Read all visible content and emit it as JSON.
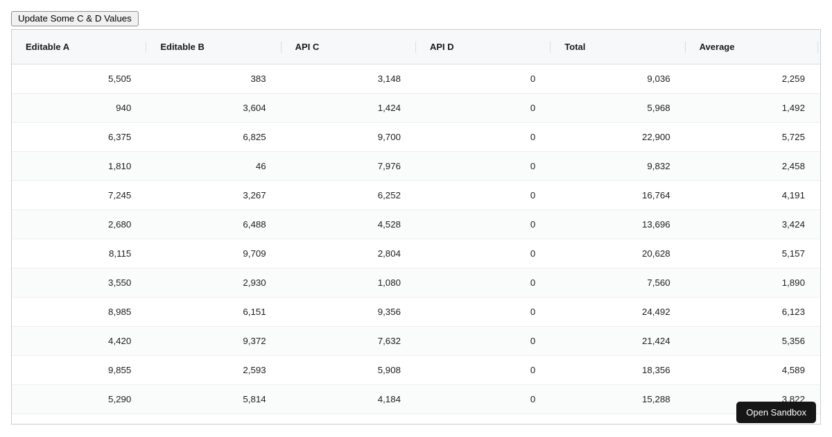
{
  "toolbar": {
    "update_button_label": "Update Some C & D Values"
  },
  "table": {
    "columns": [
      "Editable A",
      "Editable B",
      "API C",
      "API D",
      "Total",
      "Average"
    ],
    "rows": [
      {
        "cells": [
          "5,505",
          "383",
          "3,148",
          "0",
          "9,036",
          "2,259"
        ]
      },
      {
        "cells": [
          "940",
          "3,604",
          "1,424",
          "0",
          "5,968",
          "1,492"
        ]
      },
      {
        "cells": [
          "6,375",
          "6,825",
          "9,700",
          "0",
          "22,900",
          "5,725"
        ]
      },
      {
        "cells": [
          "1,810",
          "46",
          "7,976",
          "0",
          "9,832",
          "2,458"
        ]
      },
      {
        "cells": [
          "7,245",
          "3,267",
          "6,252",
          "0",
          "16,764",
          "4,191"
        ]
      },
      {
        "cells": [
          "2,680",
          "6,488",
          "4,528",
          "0",
          "13,696",
          "3,424"
        ]
      },
      {
        "cells": [
          "8,115",
          "9,709",
          "2,804",
          "0",
          "20,628",
          "5,157"
        ]
      },
      {
        "cells": [
          "3,550",
          "2,930",
          "1,080",
          "0",
          "7,560",
          "1,890"
        ]
      },
      {
        "cells": [
          "8,985",
          "6,151",
          "9,356",
          "0",
          "24,492",
          "6,123"
        ]
      },
      {
        "cells": [
          "4,420",
          "9,372",
          "7,632",
          "0",
          "21,424",
          "5,356"
        ]
      },
      {
        "cells": [
          "9,855",
          "2,593",
          "5,908",
          "0",
          "18,356",
          "4,589"
        ]
      },
      {
        "cells": [
          "5,290",
          "5,814",
          "4,184",
          "0",
          "15,288",
          "3,822"
        ]
      }
    ],
    "partial_row_visible": true
  },
  "overlay": {
    "open_sandbox_label": "Open Sandbox"
  },
  "colors": {
    "header_bg": "#f7f8f9",
    "row_alt_bg": "#fafbfb",
    "row_border": "#eceef0",
    "table_border": "#c9ccd0",
    "sandbox_button_bg": "#161616",
    "sandbox_button_text": "#ffffff"
  }
}
